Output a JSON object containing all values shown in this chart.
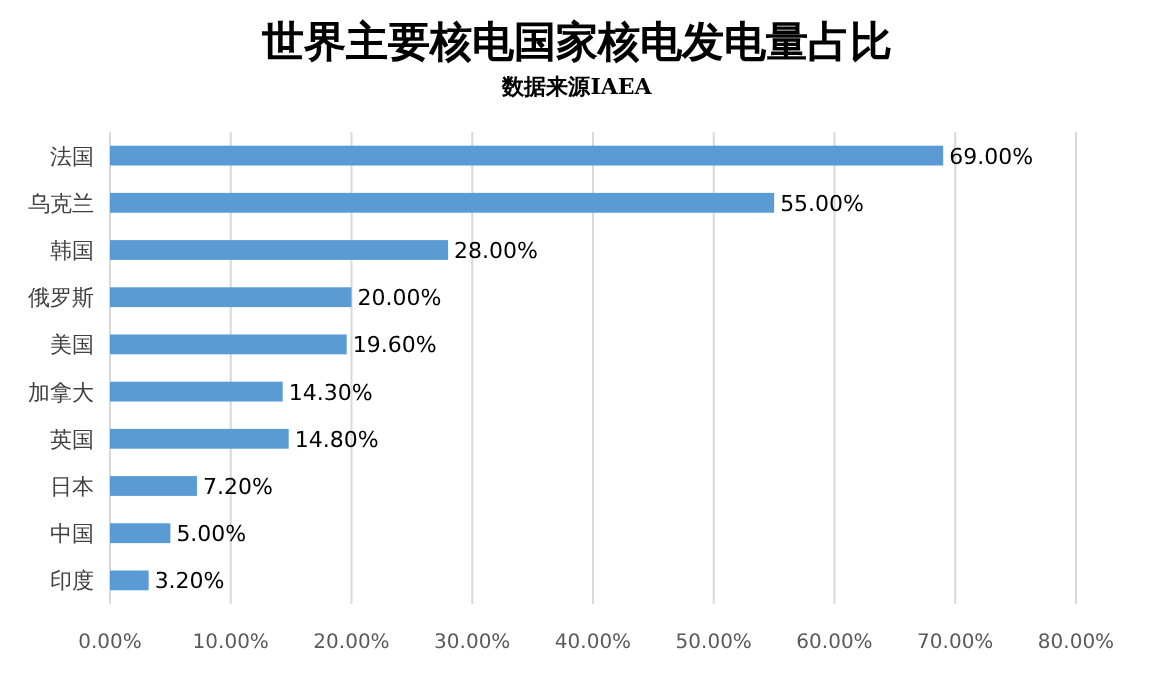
{
  "chart_data": {
    "type": "bar",
    "orientation": "horizontal",
    "title": "世界主要核电国家核电发电量占比",
    "subtitle": "数据来源IAEA",
    "categories": [
      "法国",
      "乌克兰",
      "韩国",
      "俄罗斯",
      "美国",
      "加拿大",
      "英国",
      "日本",
      "中国",
      "印度"
    ],
    "values": [
      69,
      55,
      28,
      20,
      19.6,
      14.3,
      14.8,
      7.2,
      5,
      3.2
    ],
    "value_labels": [
      "69.00%",
      "55.00%",
      "28.00%",
      "20.00%",
      "19.60%",
      "14.30%",
      "14.80%",
      "7.20%",
      "5.00%",
      "3.20%"
    ],
    "color": "#5b9bd5",
    "xlim": [
      0,
      80
    ],
    "xticks": [
      {
        "value": 0,
        "label": "0.00%"
      },
      {
        "value": 10,
        "label": "10.00%"
      },
      {
        "value": 20,
        "label": "20.00%"
      },
      {
        "value": 30,
        "label": "30.00%"
      },
      {
        "value": 40,
        "label": "40.00%"
      },
      {
        "value": 50,
        "label": "50.00%"
      },
      {
        "value": 60,
        "label": "60.00%"
      },
      {
        "value": 70,
        "label": "70.00%"
      },
      {
        "value": 80,
        "label": "80.00%"
      }
    ],
    "grid": "x"
  }
}
